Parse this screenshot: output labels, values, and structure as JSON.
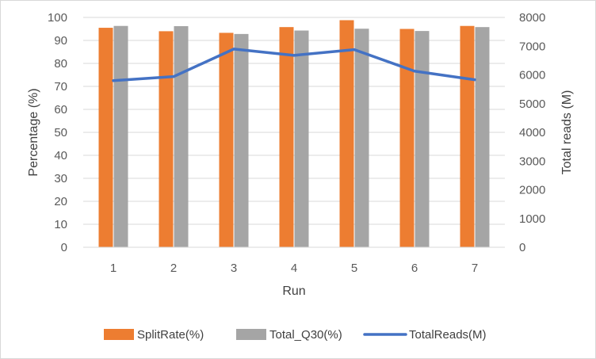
{
  "chart_data": {
    "type": "bar",
    "categories": [
      "1",
      "2",
      "3",
      "4",
      "5",
      "6",
      "7"
    ],
    "series": [
      {
        "name": "SplitRate(%)",
        "kind": "bar",
        "axis": "left",
        "color": "#ED7D31",
        "values": [
          95.5,
          94,
          93.3,
          95.8,
          98.8,
          95,
          96.3
        ]
      },
      {
        "name": "Total_Q30(%)",
        "kind": "bar",
        "axis": "left",
        "color": "#A5A5A5",
        "values": [
          96.3,
          96.2,
          92.8,
          94.3,
          95.1,
          94.1,
          95.8
        ]
      },
      {
        "name": "TotalReads(M)",
        "kind": "line",
        "axis": "right",
        "color": "#4472C4",
        "values": [
          5800,
          5940,
          6900,
          6680,
          6880,
          6130,
          5830
        ]
      }
    ],
    "xlabel": "Run",
    "ylabel": "Percentage (%)",
    "y2label": "Total reads (M)",
    "ylim": [
      0,
      100
    ],
    "y2lim": [
      0,
      8000
    ],
    "yticks": [
      "0",
      "10",
      "20",
      "30",
      "40",
      "50",
      "60",
      "70",
      "80",
      "90",
      "100"
    ],
    "y2ticks": [
      "0",
      "1000",
      "2000",
      "3000",
      "4000",
      "5000",
      "6000",
      "7000",
      "8000"
    ],
    "grid": true,
    "legend_position": "bottom"
  }
}
